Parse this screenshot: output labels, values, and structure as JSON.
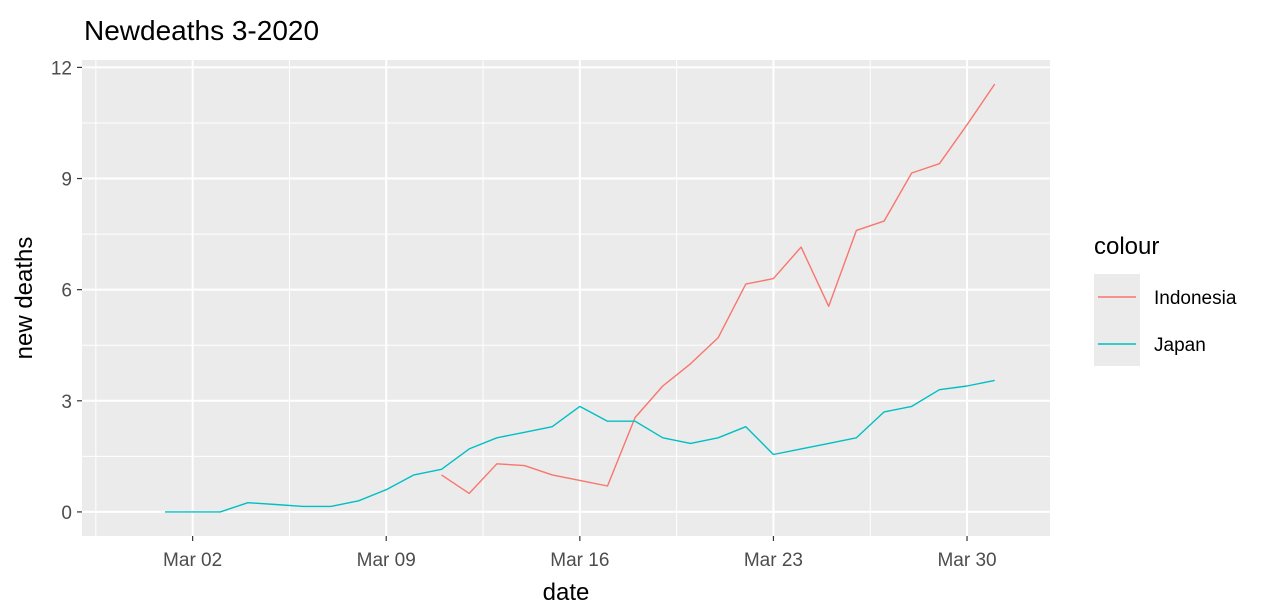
{
  "chart_data": {
    "type": "line",
    "title": "Newdeaths 3-2020",
    "xlabel": "date",
    "ylabel": "new deaths",
    "x_type": "date",
    "xlim": [
      "2020-02-27",
      "2020-04-02"
    ],
    "ylim": [
      -0.65,
      12.2
    ],
    "xticks": [
      "2020-03-02",
      "2020-03-09",
      "2020-03-16",
      "2020-03-23",
      "2020-03-30"
    ],
    "xtick_labels": [
      "Mar 02",
      "Mar 09",
      "Mar 16",
      "Mar 23",
      "Mar 30"
    ],
    "yticks": [
      0,
      3,
      6,
      9,
      12
    ],
    "ytick_labels": [
      "0",
      "3",
      "6",
      "9",
      "12"
    ],
    "grid": true,
    "background": "#ebebeb",
    "legend": {
      "title": "colour",
      "position": "right"
    },
    "series": [
      {
        "name": "Indonesia",
        "color": "#f8766d",
        "x": [
          "2020-03-11",
          "2020-03-12",
          "2020-03-13",
          "2020-03-14",
          "2020-03-15",
          "2020-03-16",
          "2020-03-17",
          "2020-03-18",
          "2020-03-19",
          "2020-03-20",
          "2020-03-21",
          "2020-03-22",
          "2020-03-23",
          "2020-03-24",
          "2020-03-25",
          "2020-03-26",
          "2020-03-27",
          "2020-03-28",
          "2020-03-29",
          "2020-03-30",
          "2020-03-31"
        ],
        "values": [
          1.0,
          0.5,
          1.3,
          1.25,
          1.0,
          0.85,
          0.7,
          2.55,
          3.4,
          4.0,
          4.7,
          6.15,
          6.3,
          7.15,
          5.55,
          7.6,
          7.85,
          9.15,
          9.4,
          10.45,
          11.55
        ]
      },
      {
        "name": "Japan",
        "color": "#00bfc4",
        "x": [
          "2020-03-01",
          "2020-03-02",
          "2020-03-03",
          "2020-03-04",
          "2020-03-05",
          "2020-03-06",
          "2020-03-07",
          "2020-03-08",
          "2020-03-09",
          "2020-03-10",
          "2020-03-11",
          "2020-03-12",
          "2020-03-13",
          "2020-03-14",
          "2020-03-15",
          "2020-03-16",
          "2020-03-17",
          "2020-03-18",
          "2020-03-19",
          "2020-03-20",
          "2020-03-21",
          "2020-03-22",
          "2020-03-23",
          "2020-03-24",
          "2020-03-25",
          "2020-03-26",
          "2020-03-27",
          "2020-03-28",
          "2020-03-29",
          "2020-03-30",
          "2020-03-31"
        ],
        "values": [
          0,
          0,
          0,
          0.25,
          0.2,
          0.15,
          0.15,
          0.3,
          0.6,
          1.0,
          1.15,
          1.7,
          2.0,
          2.15,
          2.3,
          2.85,
          2.45,
          2.45,
          2.0,
          1.85,
          2.0,
          2.3,
          1.55,
          1.7,
          1.85,
          2.0,
          2.7,
          2.85,
          3.3,
          3.4,
          3.55
        ]
      }
    ]
  }
}
